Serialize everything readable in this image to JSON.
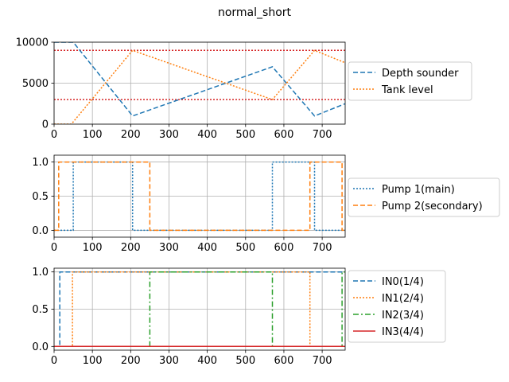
{
  "figure": {
    "title": "normal_short"
  },
  "chart_data": [
    {
      "type": "line",
      "xlim": [
        0,
        760
      ],
      "ylim": [
        0,
        10000
      ],
      "xticks": [
        0,
        100,
        200,
        300,
        400,
        500,
        600,
        700
      ],
      "yticks": [
        0,
        5000,
        10000
      ],
      "grid": true,
      "legend_position": "outside-right",
      "series": [
        {
          "name": "Depth sounder",
          "style": "dashed",
          "color": "#1f77b4",
          "x": [
            0,
            50,
            205,
            570,
            680,
            760
          ],
          "y": [
            10000,
            10000,
            1000,
            7000,
            1000,
            2500
          ]
        },
        {
          "name": "Tank level",
          "style": "dotted",
          "color": "#ff7f0e",
          "x": [
            0,
            45,
            205,
            570,
            680,
            760
          ],
          "y": [
            0,
            0,
            9000,
            3000,
            9000,
            7500
          ]
        }
      ],
      "hlines": [
        {
          "y": 9000,
          "style": "dotted",
          "color": "#d62728"
        },
        {
          "y": 3000,
          "style": "dotted",
          "color": "#d62728"
        }
      ]
    },
    {
      "type": "line",
      "xlim": [
        0,
        760
      ],
      "ylim": [
        -0.1,
        1.1
      ],
      "xticks": [
        0,
        100,
        200,
        300,
        400,
        500,
        600,
        700
      ],
      "yticks": [
        0.0,
        0.5,
        1.0
      ],
      "grid": true,
      "legend_position": "outside-right",
      "series": [
        {
          "name": "Pump 1(main)",
          "style": "dotted",
          "color": "#1f77b4",
          "x": [
            0,
            50,
            50,
            205,
            205,
            570,
            570,
            680,
            680,
            760
          ],
          "y": [
            0,
            0,
            1,
            1,
            0,
            0,
            1,
            1,
            0,
            0
          ]
        },
        {
          "name": "Pump 2(secondary)",
          "style": "dashed",
          "color": "#ff7f0e",
          "x": [
            0,
            12,
            12,
            250,
            250,
            668,
            668,
            752,
            752,
            760
          ],
          "y": [
            0,
            0,
            1,
            1,
            0,
            0,
            1,
            1,
            0,
            0
          ]
        }
      ]
    },
    {
      "type": "line",
      "xlim": [
        0,
        760
      ],
      "ylim": [
        -0.05,
        1.05
      ],
      "xticks": [
        0,
        100,
        200,
        300,
        400,
        500,
        600,
        700
      ],
      "yticks": [
        0.0,
        0.5,
        1.0
      ],
      "grid": true,
      "legend_position": "outside-right",
      "series": [
        {
          "name": "IN0(1/4)",
          "style": "dashed",
          "color": "#1f77b4",
          "x": [
            0,
            15,
            15,
            760
          ],
          "y": [
            0,
            0,
            1,
            1
          ]
        },
        {
          "name": "IN1(2/4)",
          "style": "dotted",
          "color": "#ff7f0e",
          "x": [
            0,
            48,
            48,
            668,
            668,
            760
          ],
          "y": [
            0,
            0,
            1,
            1,
            0,
            0
          ]
        },
        {
          "name": "IN2(3/4)",
          "style": "dashdot",
          "color": "#2ca02c",
          "x": [
            0,
            250,
            250,
            570,
            570,
            752,
            752,
            760
          ],
          "y": [
            0,
            0,
            1,
            1,
            0,
            0,
            1,
            1
          ]
        },
        {
          "name": "IN3(4/4)",
          "style": "solid",
          "color": "#d62728",
          "x": [
            0,
            760
          ],
          "y": [
            0,
            0
          ]
        }
      ]
    }
  ]
}
